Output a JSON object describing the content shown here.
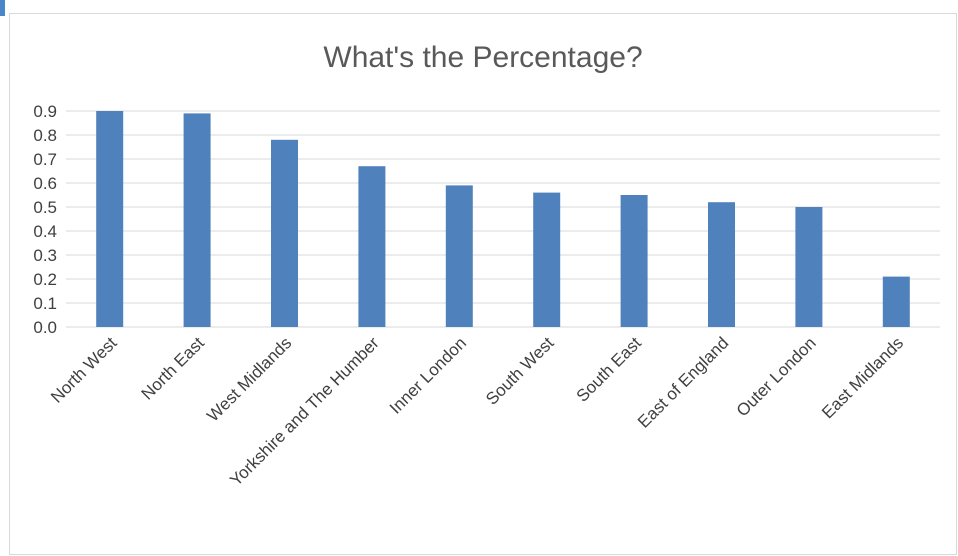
{
  "chart_data": {
    "type": "bar",
    "title": "What's the Percentage?",
    "xlabel": "",
    "ylabel": "",
    "categories": [
      "North West",
      "North East",
      "West Midlands",
      "Yorkshire and The Humber",
      "Inner London",
      "South West",
      "South East",
      "East of England",
      "Outer London",
      "East Midlands"
    ],
    "values": [
      0.9,
      0.89,
      0.78,
      0.67,
      0.59,
      0.56,
      0.55,
      0.52,
      0.5,
      0.21
    ],
    "ylim": [
      0,
      0.9
    ],
    "yticks": [
      "0.0",
      "0.1",
      "0.2",
      "0.3",
      "0.4",
      "0.5",
      "0.6",
      "0.7",
      "0.8",
      "0.9"
    ],
    "grid": true,
    "legend": "none",
    "bar_color": "#4f81bd",
    "grid_color": "#d9d9d9"
  }
}
